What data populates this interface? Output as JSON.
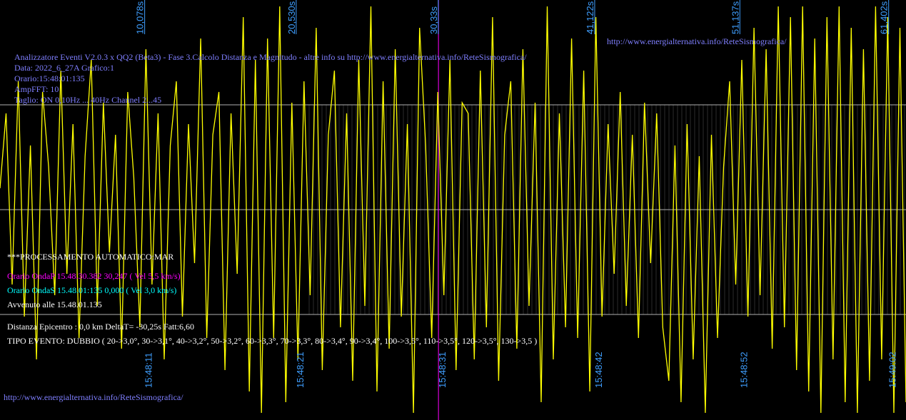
{
  "colors": {
    "background": "#000000",
    "trace": "#ffff00",
    "grid": "#b0b0b0",
    "minor_grid": "#5a5a5a",
    "time_label": "#3f9fff",
    "info_text": "#7f7fff",
    "p_wave": "#ff00ff",
    "s_wave": "#00ffff",
    "result_text": "#ffffff"
  },
  "header": {
    "url_top": "http://www.energialternativa.info/ReteSismografica/",
    "title": "Analizzatore Eventi V2.0.3 x QQ2 (Beta3) - Fase 3.Calcolo Distanza e Magnitudo - altre info su http://www.energialternativa.info/ReteSismografica/",
    "data": "Data: 2022_6_27A Grafico:1",
    "orario": "Orario:15:48:01:135",
    "amp_fft": "AmpFFT: 10",
    "taglio": "Taglio: ON 0,10Hz ... 40Hz        Channel 2...45"
  },
  "processing": {
    "heading": "***PROCESSAMENTO AUTOMATICO:MAR",
    "onda_p": "Orario OndaP 15.48.30.382  30,247 ( Vel 5,5 km/s)",
    "onda_s": "Orario OndaS 15.48.01:135  0,000 ( Vel 3,0 km/s)",
    "avvenuto": "Avvenuto alle 15.48.01.135",
    "distanza": "Distanza Epicentro : 0,0 km DeltaT= -30,25s  Fatt:6,60",
    "tipo_evento": "TIPO EVENTO: DUBBIO ( 20->3,0°, 30->3,1°, 40->3,2°, 50->3,2°, 60->3,3°, 70->3,3°, 80->3,4°, 90->3,4°, 100->3,5°, 110->3,5°, 120->3,5°, 130->3,5 )"
  },
  "footer": {
    "url_bottom": "http://www.energialternativa.info/ReteSismografica/"
  },
  "chart_data": {
    "type": "line",
    "title": "Analizzatore Eventi V2.0.3 x QQ2 (Beta3)",
    "xlabel": "",
    "ylabel": "",
    "grid": true,
    "seconds_ticks": [
      {
        "value": 10.078,
        "label": "10,078s"
      },
      {
        "value": 20.53,
        "label": "20,530s"
      },
      {
        "value": 30.33,
        "label": "30,33s"
      },
      {
        "value": 41.122,
        "label": "41,122s"
      },
      {
        "value": 51.137,
        "label": "51,137s"
      },
      {
        "value": 61.402,
        "label": "61,402s"
      }
    ],
    "clock_ticks": [
      {
        "value": 10.078,
        "label": "15:48:11"
      },
      {
        "value": 20.53,
        "label": "15:48:21"
      },
      {
        "value": 30.33,
        "label": "15:48:31"
      },
      {
        "value": 41.122,
        "label": "15:48:42"
      },
      {
        "value": 51.137,
        "label": "15:48:52"
      },
      {
        "value": 61.402,
        "label": "15:49:02"
      }
    ],
    "p_wave_marker": {
      "value": 30.247,
      "label": "Onda P"
    },
    "xlim": [
      0,
      62.5
    ],
    "ylim": [
      -1.0,
      1.0
    ],
    "series": [
      {
        "values": [
          0.1,
          0.45,
          -0.35,
          0.6,
          -0.5,
          0.3,
          -0.7,
          0.55,
          0.2,
          -0.4,
          0.65,
          -0.3,
          0.4,
          -0.6,
          0.25,
          0.7,
          -0.45,
          0.5,
          -0.2,
          0.35,
          -0.65,
          0.55,
          0.15,
          -0.55,
          0.75,
          -0.35,
          0.45,
          -0.7,
          0.3,
          0.6,
          -0.5,
          0.4,
          -0.25,
          0.8,
          -0.6,
          0.35,
          0.55,
          -0.75,
          0.45,
          -0.3,
          0.9,
          -0.85,
          0.7,
          -0.95,
          0.8,
          -0.6,
          0.95,
          -0.9,
          0.5,
          -0.7,
          0.6,
          -0.4,
          0.85,
          -0.75,
          0.35,
          0.65,
          -0.55,
          0.45,
          -0.8,
          0.7,
          -0.45,
          0.95,
          -0.85,
          0.6,
          -0.65,
          0.75,
          -0.5,
          0.4,
          -0.95,
          0.85,
          0.3,
          -0.6,
          0.55,
          -0.4,
          0.7,
          -0.75,
          0.5,
          0.45,
          -0.7,
          0.65,
          -0.55,
          0.9,
          -0.8,
          0.35,
          0.6,
          -0.65,
          0.75,
          -0.45,
          0.5,
          -0.9,
          0.95,
          -0.7,
          0.45,
          -0.55,
          0.8,
          -0.6,
          0.65,
          -0.85,
          0.9,
          -0.5,
          0.4,
          -0.3,
          0.55,
          -0.45,
          0.35,
          -0.6,
          0.5,
          -0.25,
          0.45,
          -0.55,
          -0.8,
          0.3,
          -0.9,
          0.4,
          -0.7,
          0.25,
          -0.95,
          0.35,
          -0.6,
          0.2,
          0.6,
          -0.35,
          0.7,
          -0.5,
          0.85,
          -0.4,
          0.75,
          -0.65,
          0.95,
          -0.55,
          0.9,
          -0.75,
          0.95,
          -0.85,
          0.8,
          -0.95,
          0.9,
          -0.7,
          0.95,
          -0.9,
          0.85,
          -0.95,
          0.75,
          -0.8,
          0.95,
          -0.7,
          0.9,
          -0.95,
          0.85,
          -0.9
        ]
      }
    ]
  }
}
